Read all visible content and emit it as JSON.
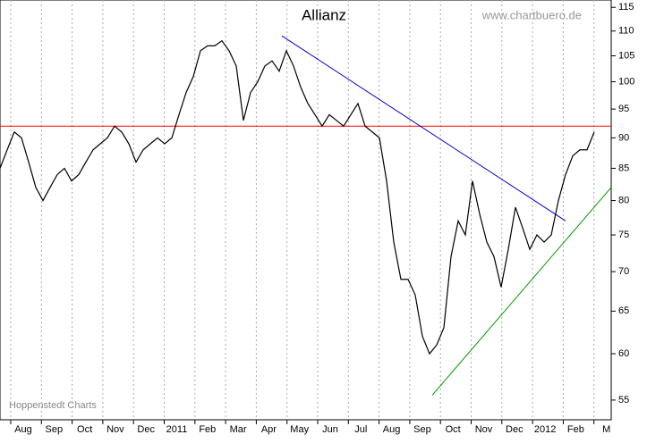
{
  "chart_data": {
    "type": "line",
    "title": "Allianz",
    "source": "www.chartbuero.de",
    "credit": "Hoppenstedt Charts",
    "x_labels": [
      "Aug",
      "Sep",
      "Oct",
      "Nov",
      "Dec",
      "2011",
      "Feb",
      "Mar",
      "Apr",
      "May",
      "Jun",
      "Jul",
      "Aug",
      "Sep",
      "Oct",
      "Nov",
      "Dec",
      "2012",
      "Feb",
      "M"
    ],
    "series": [
      {
        "name": "Allianz",
        "color": "#000000",
        "values": [
          85,
          88,
          91,
          90,
          86,
          82,
          80,
          82,
          84,
          85,
          83,
          84,
          86,
          88,
          89,
          90,
          92,
          91,
          89,
          86,
          88,
          89,
          90,
          89,
          90,
          94,
          98,
          101,
          106,
          107,
          107,
          108,
          106,
          103,
          93,
          98,
          100,
          103,
          104,
          102,
          106,
          103,
          99,
          96,
          94,
          92,
          94,
          93,
          92,
          94,
          96,
          92,
          91,
          90,
          83,
          74,
          69,
          69,
          67,
          62,
          60,
          61,
          63,
          72,
          77,
          75,
          83,
          78,
          74,
          72,
          68,
          73,
          79,
          76,
          73,
          75,
          74,
          75,
          80,
          84,
          87,
          88,
          88,
          91
        ]
      }
    ],
    "resistance": {
      "value": 92,
      "color": "#ff0000"
    },
    "downtrend": {
      "start": 109,
      "end": 77,
      "color": "#0000cc"
    },
    "uptrend": {
      "start": 55.5,
      "end": 82,
      "color": "#009900"
    },
    "log_scale": true,
    "ylim": [
      53,
      116.6
    ],
    "yticks": [
      55,
      60,
      65,
      70,
      75,
      80,
      85,
      90,
      95,
      100,
      105,
      110,
      115
    ],
    "grid": true
  }
}
